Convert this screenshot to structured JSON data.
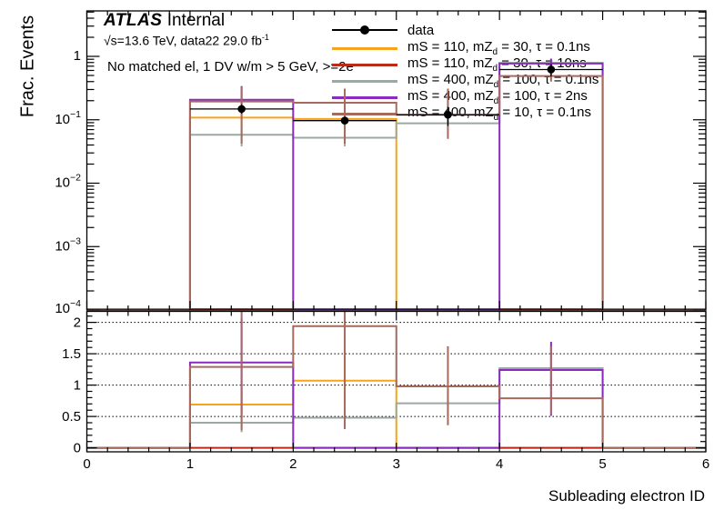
{
  "meta": {
    "experiment": "ATLAS",
    "status": "Internal",
    "lumi_text": "√s=13.6 TeV, data22 29.0 fb",
    "lumi_sup": "-1",
    "selection": "No matched el, 1 DV w/m > 5 GeV, >=2e"
  },
  "axes": {
    "x_title": "Subleading electron ID",
    "y_title": "Frac. Events",
    "x_range": [
      0,
      6
    ],
    "x_major_ticks": [
      {
        "v": 0,
        "t": "0"
      },
      {
        "v": 1,
        "t": "1"
      },
      {
        "v": 2,
        "t": "2"
      },
      {
        "v": 3,
        "t": "3"
      },
      {
        "v": 4,
        "t": "4"
      },
      {
        "v": 5,
        "t": "5"
      },
      {
        "v": 6,
        "t": "6"
      }
    ],
    "x_minor_step": 0.2,
    "main_y_scale": "log",
    "main_y_range": [
      0.0001,
      5.2
    ],
    "main_y_ticks": [
      {
        "v": 1,
        "t": "1"
      },
      {
        "v": 0.1,
        "b": "10",
        "e": "−1"
      },
      {
        "v": 0.01,
        "b": "10",
        "e": "−2"
      },
      {
        "v": 0.001,
        "b": "10",
        "e": "−3"
      },
      {
        "v": 0.0001,
        "b": "10",
        "e": "−4"
      }
    ],
    "ratio_y_range": [
      -0.07,
      2.18
    ],
    "ratio_y_ticks": [
      {
        "v": 0,
        "t": "0"
      },
      {
        "v": 0.5,
        "t": "0.5"
      },
      {
        "v": 1,
        "t": "1"
      },
      {
        "v": 1.5,
        "t": "1.5"
      },
      {
        "v": 2,
        "t": "2"
      }
    ],
    "ratio_y_minor_step": 0.1,
    "ratio_gridlines": [
      0.5,
      1,
      1.5,
      2
    ],
    "grid_on": "ratio panel only, dotted horizontal"
  },
  "legend": {
    "position": "top-right",
    "entries": [
      {
        "label": "data",
        "type": "marker-line",
        "color": "#000000"
      },
      {
        "label_pre": "mS = 110, mZ",
        "label_sub": "d",
        "label_post": " = 30, τ = 0.1ns",
        "type": "line",
        "color": "#F7A41C"
      },
      {
        "label_pre": "mS = 110, mZ",
        "label_sub": "d",
        "label_post": " = 30, τ = 10ns",
        "type": "line",
        "color": "#BB2A18"
      },
      {
        "label_pre": "mS = 400, mZ",
        "label_sub": "d",
        "label_post": " = 100, τ = 0.1ns",
        "type": "line",
        "color": "#9CA8A2"
      },
      {
        "label_pre": "mS = 400, mZ",
        "label_sub": "d",
        "label_post": " = 100, τ = 2ns",
        "type": "line",
        "color": "#8A2BBE"
      },
      {
        "label_pre": "mS = 400, mZ",
        "label_sub": "d",
        "label_post": " = 10, τ = 0.1ns",
        "type": "line",
        "color": "#A66A5E"
      }
    ]
  },
  "chart_data": [
    {
      "type": "bar",
      "style": "step-histogram",
      "panel": "main",
      "title": "",
      "xlabel": "Subleading electron ID",
      "ylabel": "Frac. Events",
      "yscale": "log",
      "ylim": [
        0.0001,
        5.2
      ],
      "xlim": [
        0,
        6
      ],
      "bin_edges": [
        0,
        1,
        2,
        3,
        4,
        5,
        6
      ],
      "series": [
        {
          "name": "mS = 110, mZd = 30, τ = 0.1ns",
          "color": "#F7A41C",
          "values": [
            0,
            0.108,
            0.103,
            0,
            0,
            0
          ],
          "errors": [
            null,
            [
              0.085,
              0.135
            ],
            [
              0.07,
              0.15
            ],
            null,
            null,
            null
          ]
        },
        {
          "name": "mS = 110, mZd = 30, τ = 10ns",
          "color": "#BB2A18",
          "values": [
            0,
            0,
            0,
            0,
            0,
            0
          ],
          "errors": [
            null,
            null,
            null,
            null,
            null,
            null
          ]
        },
        {
          "name": "mS = 400, mZd = 100, τ = 0.1ns",
          "color": "#9CA8A2",
          "values": [
            0,
            0.058,
            0.052,
            0.088,
            0.79,
            0
          ],
          "errors": [
            null,
            [
              0.038,
              0.085
            ],
            [
              0.038,
              0.072
            ],
            [
              0.062,
              0.122
            ],
            [
              0.68,
              0.92
            ],
            null
          ]
        },
        {
          "name": "mS = 400, mZd = 100, τ = 2ns",
          "color": "#8A2BBE",
          "values": [
            0,
            0.207,
            0,
            0,
            0.77,
            0
          ],
          "errors": [
            null,
            [
              0.12,
              0.34
            ],
            null,
            null,
            [
              0.64,
              0.92
            ],
            null
          ]
        },
        {
          "name": "mS = 400, mZd = 10, τ = 0.1ns",
          "color": "#A66A5E",
          "values": [
            0,
            0.194,
            0.186,
            0.12,
            0.49,
            0
          ],
          "errors": [
            null,
            [
              0.042,
              0.33
            ],
            [
              0.042,
              0.31
            ],
            [
              0.05,
              0.31
            ],
            [
              0.4,
              0.64
            ],
            null
          ]
        },
        {
          "name": "data",
          "style": "points",
          "color": "#000000",
          "values": [
            null,
            0.148,
            0.097,
            0.12,
            0.62,
            null
          ],
          "errors": [
            null,
            [
              0.125,
              0.175
            ],
            [
              0.085,
              0.112
            ],
            [
              0.08,
              0.16
            ],
            [
              0.48,
              0.76
            ],
            null
          ]
        }
      ]
    },
    {
      "type": "bar",
      "style": "step-histogram",
      "panel": "ratio",
      "title": "",
      "ylabel": "",
      "yscale": "linear",
      "ylim": [
        -0.07,
        2.18
      ],
      "xlim": [
        0,
        6
      ],
      "bin_edges": [
        0,
        1,
        2,
        3,
        4,
        5,
        6
      ],
      "series": [
        {
          "name": "mS = 110, mZd = 30, τ = 0.1ns",
          "color": "#F7A41C",
          "values": [
            0,
            0.69,
            1.07,
            0,
            0,
            0
          ],
          "errors": [
            null,
            [
              0.5,
              0.9
            ],
            [
              0.7,
              1.45
            ],
            null,
            null,
            null
          ]
        },
        {
          "name": "mS = 110, mZd = 30, τ = 10ns",
          "color": "#BB2A18",
          "values": [
            0,
            0,
            0,
            0,
            0,
            0
          ],
          "errors": [
            null,
            null,
            null,
            null,
            null,
            null
          ]
        },
        {
          "name": "mS = 400, mZd = 100, τ = 0.1ns",
          "color": "#9CA8A2",
          "values": [
            0,
            0.4,
            0.48,
            0.71,
            1.27,
            0
          ],
          "errors": [
            null,
            [
              0.25,
              0.56
            ],
            [
              0.3,
              0.65
            ],
            [
              0.5,
              0.93
            ],
            [
              0.95,
              1.6
            ],
            null
          ]
        },
        {
          "name": "mS = 400, mZd = 100, τ = 2ns",
          "color": "#8A2BBE",
          "values": [
            0,
            1.36,
            0,
            0,
            1.24,
            0
          ],
          "errors": [
            null,
            [
              0.55,
              2.06
            ],
            null,
            null,
            [
              0.51,
              1.69
            ],
            null
          ]
        },
        {
          "name": "mS = 400, mZd = 10, τ = 0.1ns",
          "color": "#A66A5E",
          "values": [
            0,
            1.29,
            1.94,
            0.98,
            0.79,
            0
          ],
          "errors": [
            null,
            [
              0.28,
              2.4
            ],
            [
              0.3,
              2.4
            ],
            [
              0.36,
              1.62
            ],
            [
              0.53,
              1.62
            ],
            null
          ]
        }
      ]
    }
  ]
}
